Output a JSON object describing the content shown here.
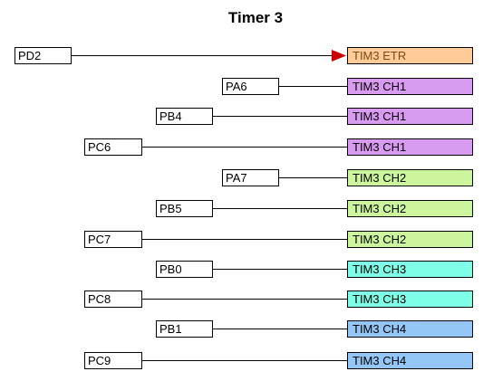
{
  "title": "Timer 3",
  "colors": {
    "etr": "#FFCC99",
    "ch1": "#D99BF0",
    "ch2": "#CCF59E",
    "ch3": "#80FFE8",
    "ch4": "#94C7F5",
    "arrow": "#CC0000",
    "line": "#000000"
  },
  "connections": [
    {
      "pin": "PD2",
      "function": "TIM3 ETR",
      "group": "etr",
      "arrow": true
    },
    {
      "pin": "PA6",
      "function": "TIM3 CH1",
      "group": "ch1"
    },
    {
      "pin": "PB4",
      "function": "TIM3 CH1",
      "group": "ch1"
    },
    {
      "pin": "PC6",
      "function": "TIM3 CH1",
      "group": "ch1"
    },
    {
      "pin": "PA7",
      "function": "TIM3 CH2",
      "group": "ch2"
    },
    {
      "pin": "PB5",
      "function": "TIM3 CH2",
      "group": "ch2"
    },
    {
      "pin": "PC7",
      "function": "TIM3 CH2",
      "group": "ch2"
    },
    {
      "pin": "PB0",
      "function": "TIM3 CH3",
      "group": "ch3"
    },
    {
      "pin": "PC8",
      "function": "TIM3 CH3",
      "group": "ch3"
    },
    {
      "pin": "PB1",
      "function": "TIM3 CH4",
      "group": "ch4"
    },
    {
      "pin": "PC9",
      "function": "TIM3 CH4",
      "group": "ch4"
    }
  ]
}
